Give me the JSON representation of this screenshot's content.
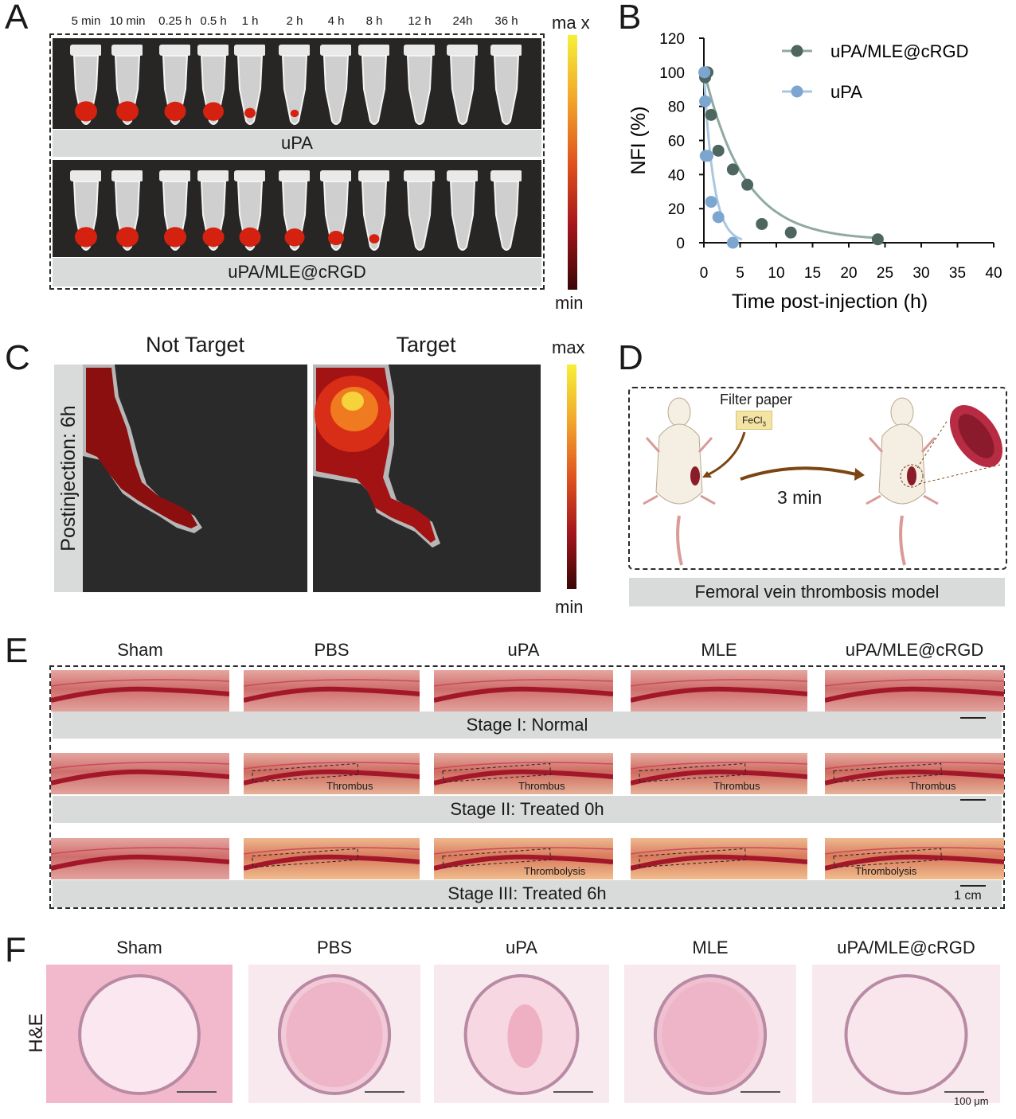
{
  "panels": {
    "a": "A",
    "b": "B",
    "c": "C",
    "d": "D",
    "e": "E",
    "f": "F"
  },
  "panel_a": {
    "timepoints": [
      "5 min",
      "10 min",
      "0.25 h",
      "0.5 h",
      "1 h",
      "2 h",
      "4 h",
      "8 h",
      "12 h",
      "24h",
      "36 h"
    ],
    "row1_label": "uPA",
    "row2_label": "uPA/MLE@cRGD",
    "colorbar_max": "ma x",
    "colorbar_min": "min",
    "row1_signal": [
      1.0,
      1.0,
      0.95,
      0.9,
      0.3,
      0.12,
      0,
      0,
      0,
      0,
      0
    ],
    "row2_signal": [
      1.0,
      1.0,
      1.0,
      0.95,
      0.95,
      0.85,
      0.6,
      0.25,
      0,
      0,
      0
    ]
  },
  "chart_data": {
    "type": "scatter",
    "xlabel": "Time post-injection (h)",
    "ylabel": "NFI (%)",
    "xlim": [
      0,
      40
    ],
    "ylim": [
      0,
      120
    ],
    "xticks": [
      "0",
      "5",
      "10",
      "15",
      "20",
      "25",
      "30",
      "35",
      "40"
    ],
    "yticks": [
      "0",
      "20",
      "40",
      "60",
      "80",
      "100",
      "120"
    ],
    "legend_position": "top-right",
    "series": [
      {
        "name": "uPA/MLE@cRGD",
        "color": "#4e6660",
        "x": [
          0.08,
          0.17,
          0.5,
          1,
          2,
          4,
          6,
          8,
          12,
          24
        ],
        "y": [
          100,
          97,
          100,
          75,
          54,
          43,
          34,
          11,
          6,
          2
        ]
      },
      {
        "name": "uPA",
        "color": "#7ca6cf",
        "x": [
          0.08,
          0.17,
          0.25,
          0.5,
          1,
          2,
          4
        ],
        "y": [
          100,
          83,
          51,
          51,
          24,
          15,
          0
        ]
      }
    ]
  },
  "panel_c": {
    "col1": "Not Target",
    "col2": "Target",
    "side_label": "Postinjection: 6h",
    "colorbar_max": "max",
    "colorbar_min": "min"
  },
  "panel_d": {
    "filter_paper": "Filter paper",
    "fecl3": "FeCl",
    "fecl3_sub": "3",
    "time": "3 min",
    "caption": "Femoral vein thrombosis model"
  },
  "panel_e": {
    "columns": [
      "Sham",
      "PBS",
      "uPA",
      "MLE",
      "uPA/MLE@cRGD"
    ],
    "stage1": "Stage I: Normal",
    "stage2": "Stage II: Treated 0h",
    "stage3": "Stage III: Treated 6h",
    "thrombus": "Thrombus",
    "thrombolysis": "Thrombolysis",
    "scale": "1 cm"
  },
  "panel_f": {
    "columns": [
      "Sham",
      "PBS",
      "uPA",
      "MLE",
      "uPA/MLE@cRGD"
    ],
    "row_label": "H&E",
    "scale": "100 μm"
  }
}
